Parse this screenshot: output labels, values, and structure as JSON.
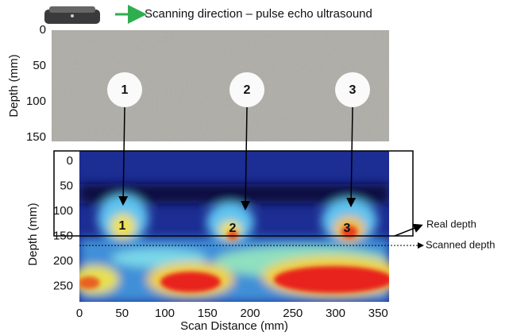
{
  "header": {
    "caption": "Scanning direction – pulse echo ultrasound"
  },
  "photo": {
    "axis_label": "Depth (mm)",
    "ticks": [
      0,
      50,
      100,
      150
    ]
  },
  "markers": [
    "1",
    "2",
    "3"
  ],
  "scan": {
    "y_axis_label": "Depth (mm)",
    "yticks": [
      0,
      50,
      100,
      150,
      200,
      250
    ],
    "x_axis_label": "Scan Distance (mm)",
    "xticks": [
      0,
      50,
      100,
      150,
      200,
      250,
      300,
      350
    ],
    "labels": [
      "1",
      "2",
      "3"
    ]
  },
  "annotations": {
    "real_depth": "Real depth",
    "scanned_depth": "Scanned depth"
  }
}
